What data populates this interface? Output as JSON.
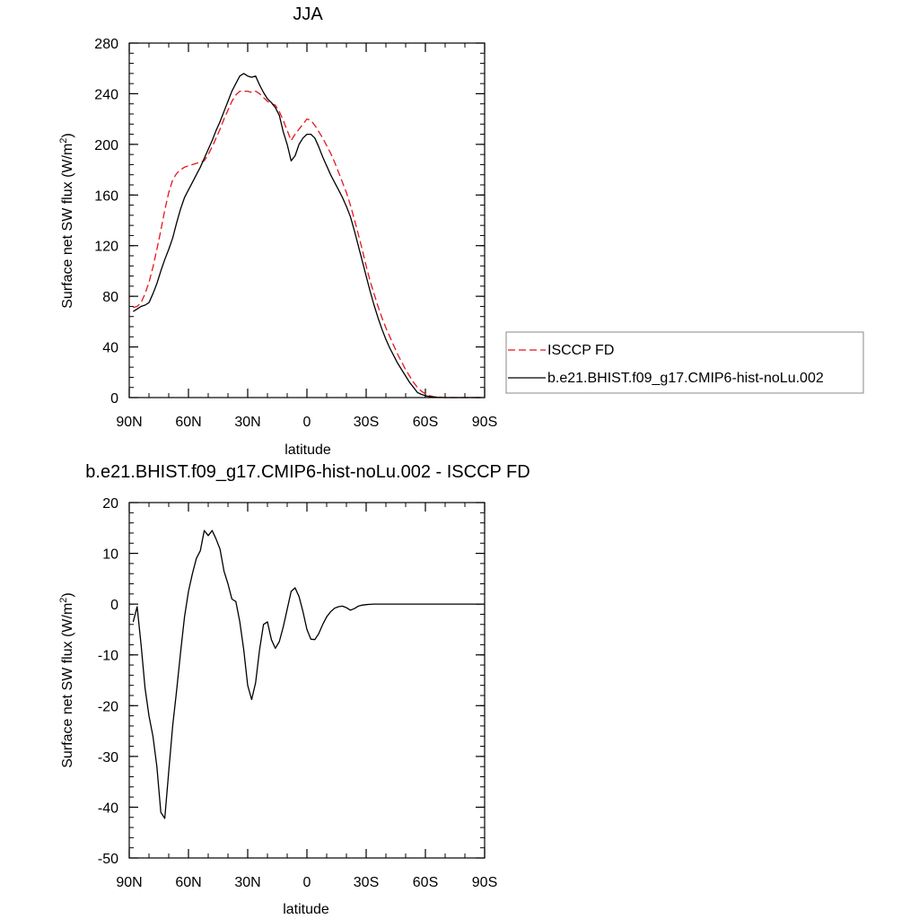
{
  "chart_data": [
    {
      "type": "line",
      "title": "JJA",
      "xlabel": "latitude",
      "ylabel_main": "Surface net SW flux (W/m",
      "ylabel_sup": "2",
      "ylabel_tail": ")",
      "xlim": [
        90,
        -90
      ],
      "ylim": [
        0,
        280
      ],
      "xticks": [
        {
          "v": 90,
          "label": "90N"
        },
        {
          "v": 60,
          "label": "60N"
        },
        {
          "v": 30,
          "label": "30N"
        },
        {
          "v": 0,
          "label": "0"
        },
        {
          "v": -30,
          "label": "30S"
        },
        {
          "v": -60,
          "label": "60S"
        },
        {
          "v": -90,
          "label": "90S"
        }
      ],
      "yticks": [
        {
          "v": 0,
          "label": "0"
        },
        {
          "v": 40,
          "label": "40"
        },
        {
          "v": 80,
          "label": "80"
        },
        {
          "v": 120,
          "label": "120"
        },
        {
          "v": 160,
          "label": "160"
        },
        {
          "v": 200,
          "label": "200"
        },
        {
          "v": 240,
          "label": "240"
        },
        {
          "v": 280,
          "label": "280"
        }
      ],
      "legend_position": "right",
      "series": [
        {
          "name": "ISCCP FD",
          "color": "#e8151b",
          "dash": "dashed",
          "x": [
            88,
            86,
            84,
            82,
            80,
            78,
            76,
            74,
            72,
            70,
            68,
            66,
            64,
            62,
            60,
            58,
            56,
            54,
            52,
            50,
            48,
            46,
            44,
            42,
            40,
            38,
            36,
            34,
            32,
            30,
            28,
            26,
            24,
            22,
            20,
            18,
            16,
            14,
            12,
            10,
            8,
            6,
            4,
            2,
            0,
            -2,
            -4,
            -6,
            -8,
            -10,
            -12,
            -14,
            -16,
            -18,
            -20,
            -22,
            -24,
            -26,
            -28,
            -30,
            -32,
            -34,
            -36,
            -38,
            -40,
            -42,
            -44,
            -46,
            -48,
            -50,
            -52,
            -54,
            -56,
            -58,
            -60,
            -62,
            -64,
            -66,
            -68,
            -70,
            -72,
            -74,
            -76,
            -78,
            -80,
            -82,
            -84,
            -86,
            -88
          ],
          "y": [
            71,
            72,
            75,
            82,
            91,
            103,
            117,
            132,
            148,
            162,
            172,
            177,
            180,
            182,
            183,
            184,
            185,
            186,
            187,
            192,
            198,
            205,
            212,
            220,
            227,
            234,
            239,
            242,
            242,
            242,
            241,
            242,
            240,
            237,
            234,
            232,
            231,
            226,
            219,
            211,
            203,
            208,
            212,
            216,
            220,
            219,
            215,
            210,
            205,
            199,
            193,
            186,
            178,
            170,
            162,
            152,
            141,
            129,
            117,
            104,
            92,
            82,
            72,
            63,
            55,
            48,
            41,
            34,
            28,
            22,
            17,
            12,
            8,
            5,
            3,
            1.5,
            0.8,
            0.4,
            0.2,
            0,
            0,
            0,
            0,
            0,
            0,
            0,
            0,
            0,
            0
          ]
        },
        {
          "name": "b.e21.BHIST.f09_g17.CMIP6-hist-noLu.002",
          "color": "#000000",
          "dash": "solid",
          "x": [
            88,
            86,
            84,
            82,
            80,
            78,
            76,
            74,
            72,
            70,
            68,
            66,
            64,
            62,
            60,
            58,
            56,
            54,
            52,
            50,
            48,
            46,
            44,
            42,
            40,
            38,
            36,
            34,
            32,
            30,
            28,
            26,
            24,
            22,
            20,
            18,
            16,
            14,
            12,
            10,
            8,
            6,
            4,
            2,
            0,
            -2,
            -4,
            -6,
            -8,
            -10,
            -12,
            -14,
            -16,
            -18,
            -20,
            -22,
            -24,
            -26,
            -28,
            -30,
            -32,
            -34,
            -36,
            -38,
            -40,
            -42,
            -44,
            -46,
            -48,
            -50,
            -52,
            -54,
            -56,
            -58,
            -60,
            -62,
            -64,
            -66,
            -68,
            -70,
            -72,
            -74,
            -76,
            -78,
            -80,
            -82,
            -84,
            -86,
            -88
          ],
          "y": [
            68,
            70,
            72,
            73,
            75,
            82,
            90,
            100,
            109,
            117,
            126,
            138,
            149,
            158,
            164,
            170,
            176,
            182,
            189,
            196,
            203,
            211,
            218,
            226,
            234,
            242,
            248,
            254,
            256,
            254,
            253,
            254,
            247,
            241,
            236,
            233,
            229,
            223,
            210,
            200,
            187,
            191,
            200,
            205,
            208,
            208,
            205,
            198,
            190,
            183,
            176,
            170,
            164,
            158,
            151,
            143,
            132,
            120,
            108,
            96,
            84,
            73,
            63,
            54,
            46,
            39,
            33,
            27,
            22,
            17,
            12,
            8,
            4,
            2.5,
            1.5,
            0.8,
            0.4,
            0.2,
            0.1,
            0,
            0,
            0,
            0,
            0,
            0,
            0,
            0,
            0,
            0
          ]
        }
      ]
    },
    {
      "type": "line",
      "title": "b.e21.BHIST.f09_g17.CMIP6-hist-noLu.002 - ISCCP FD",
      "xlabel": "latitude",
      "ylabel_main": "Surface net SW flux (W/m",
      "ylabel_sup": "2",
      "ylabel_tail": ")",
      "xlim": [
        90,
        -90
      ],
      "ylim": [
        -50,
        20
      ],
      "xticks": [
        {
          "v": 90,
          "label": "90N"
        },
        {
          "v": 60,
          "label": "60N"
        },
        {
          "v": 30,
          "label": "30N"
        },
        {
          "v": 0,
          "label": "0"
        },
        {
          "v": -30,
          "label": "30S"
        },
        {
          "v": -60,
          "label": "60S"
        },
        {
          "v": -90,
          "label": "90S"
        }
      ],
      "yticks": [
        {
          "v": -50,
          "label": "-50"
        },
        {
          "v": -40,
          "label": "-40"
        },
        {
          "v": -30,
          "label": "-30"
        },
        {
          "v": -20,
          "label": "-20"
        },
        {
          "v": -10,
          "label": "-10"
        },
        {
          "v": 0,
          "label": "0"
        },
        {
          "v": 10,
          "label": "10"
        },
        {
          "v": 20,
          "label": "20"
        }
      ],
      "series": [
        {
          "color": "#000000",
          "dash": "solid",
          "x": [
            88,
            86,
            84,
            82,
            80,
            78,
            76,
            74,
            72,
            70,
            68,
            66,
            64,
            62,
            60,
            58,
            56,
            54,
            52,
            50,
            48,
            46,
            44,
            42,
            40,
            38,
            36,
            34,
            32,
            30,
            28,
            26,
            24,
            22,
            20,
            18,
            16,
            14,
            12,
            10,
            8,
            6,
            4,
            2,
            0,
            -2,
            -4,
            -6,
            -8,
            -10,
            -12,
            -14,
            -16,
            -18,
            -20,
            -22,
            -24,
            -26,
            -28,
            -30,
            -32,
            -34,
            -36,
            -38,
            -40,
            -42,
            -44,
            -46,
            -48,
            -50,
            -52,
            -54,
            -56,
            -58,
            -60,
            -62,
            -64,
            -66,
            -68,
            -70,
            -72,
            -74,
            -76,
            -78,
            -80,
            -82,
            -84,
            -86,
            -88
          ],
          "y": [
            -3.5,
            -0.5,
            -8,
            -16.5,
            -22,
            -26,
            -32,
            -41,
            -42.2,
            -33,
            -24,
            -17,
            -9.5,
            -2.5,
            2.5,
            6,
            9,
            10.5,
            14.5,
            13.5,
            14.5,
            12.8,
            10.8,
            6.5,
            4,
            1,
            0.5,
            -3.5,
            -9,
            -16,
            -18.8,
            -15.5,
            -9,
            -4,
            -3.5,
            -7,
            -8.7,
            -7.4,
            -4.5,
            -1,
            2.5,
            3.2,
            1.5,
            -1.5,
            -5,
            -6.9,
            -7,
            -5.8,
            -4,
            -2.5,
            -1.5,
            -0.8,
            -0.5,
            -0.4,
            -0.7,
            -1.2,
            -0.9,
            -0.4,
            -0.2,
            -0.1,
            -0.05,
            0,
            0,
            0,
            0,
            0,
            0,
            0,
            0,
            0,
            0,
            0,
            0,
            0,
            0,
            0,
            0,
            0,
            0,
            0,
            0,
            0,
            0,
            0,
            0,
            0,
            0,
            0,
            0
          ]
        }
      ]
    }
  ]
}
